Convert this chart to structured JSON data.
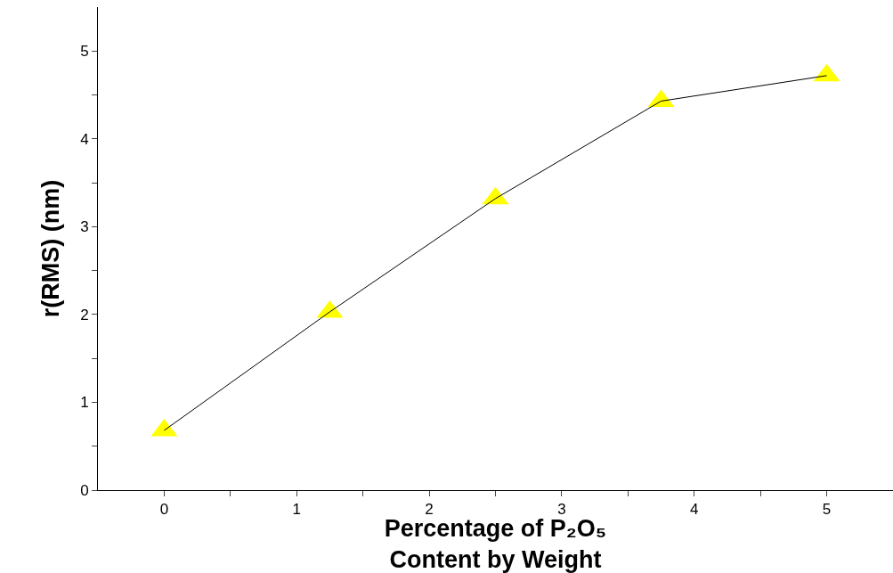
{
  "chart_data": {
    "type": "line",
    "xlabel": "Percentage of P₂O₅\nContent by Weight",
    "ylabel": "r(RMS) (nm)",
    "x": [
      0,
      1.25,
      2.5,
      3.75,
      5
    ],
    "series": [
      {
        "color": "#ffff00",
        "values": [
          0.68,
          2.03,
          3.32,
          4.43,
          4.72
        ]
      }
    ],
    "xlim": [
      -0.5,
      5.5
    ],
    "ylim": [
      0,
      5.5
    ],
    "xticks": [
      0,
      {
        "value": 0.5,
        "label": null
      },
      1,
      {
        "value": 1.5,
        "label": null
      },
      2,
      {
        "value": 2.5,
        "label": null
      },
      3,
      {
        "value": 3.5,
        "label": null
      },
      4,
      {
        "value": 4.5,
        "label": null
      },
      5
    ],
    "yticks": [
      0,
      {
        "value": 0.5,
        "label": null
      },
      1,
      {
        "value": 1.5,
        "label": null
      },
      2,
      {
        "value": 2.5,
        "label": null
      },
      3,
      {
        "value": 3.5,
        "label": null
      },
      4,
      {
        "value": 4.5,
        "label": null
      },
      5
    ],
    "marker": "triangle"
  }
}
